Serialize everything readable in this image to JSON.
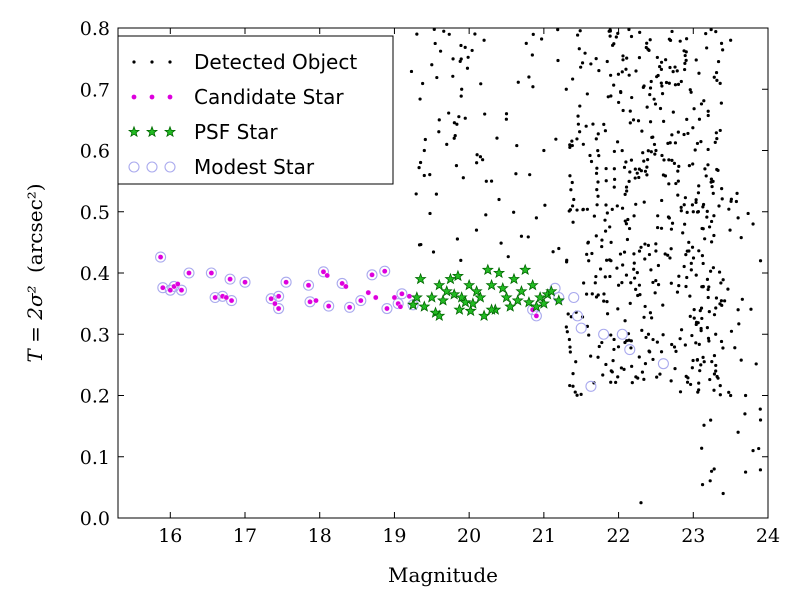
{
  "chart_data": {
    "type": "scatter",
    "xlabel": "Magnitude",
    "ylabel_math": "T = 2σ²",
    "ylabel_unit": "(arcsec²)",
    "xlim": [
      15.3,
      24.0
    ],
    "ylim": [
      0.0,
      0.8
    ],
    "xticks": [
      16,
      17,
      18,
      19,
      20,
      21,
      22,
      23,
      24
    ],
    "yticks": [
      0.0,
      0.1,
      0.2,
      0.3,
      0.4,
      0.5,
      0.6,
      0.7,
      0.8
    ],
    "legend_position": "top-left",
    "series": [
      {
        "name": "Detected Object",
        "color": "#000000",
        "marker": "dot",
        "generated_from": {
          "clusters": [
            {
              "x_range": [
                21.3,
                23.4
              ],
              "y_range": [
                0.2,
                0.8
              ],
              "count": 470,
              "seed": 11
            },
            {
              "x_range": [
                23.0,
                23.9
              ],
              "y_range": [
                0.04,
                0.55
              ],
              "count": 55,
              "seed": 23
            },
            {
              "x_range": [
                19.2,
                21.3
              ],
              "y_range": [
                0.42,
                0.8
              ],
              "count": 70,
              "seed": 37
            }
          ]
        },
        "points": [
          [
            22.3,
            0.025
          ],
          [
            23.4,
            0.04
          ],
          [
            23.7,
            0.075
          ],
          [
            23.8,
            0.11
          ],
          [
            23.6,
            0.14
          ],
          [
            23.9,
            0.16
          ],
          [
            23.5,
            0.2
          ],
          [
            22.6,
            0.56
          ],
          [
            22.8,
            0.63
          ],
          [
            19.6,
            0.65
          ],
          [
            19.9,
            0.7
          ],
          [
            19.5,
            0.74
          ],
          [
            20.2,
            0.78
          ],
          [
            19.3,
            0.79
          ],
          [
            23.5,
            0.78
          ],
          [
            23.1,
            0.25
          ],
          [
            23.3,
            0.3
          ],
          [
            22.9,
            0.43
          ],
          [
            23.0,
            0.5
          ],
          [
            22.8,
            0.55
          ],
          [
            22.5,
            0.6
          ],
          [
            22.2,
            0.65
          ],
          [
            21.7,
            0.75
          ],
          [
            21.9,
            0.45
          ],
          [
            22.0,
            0.38
          ],
          [
            21.6,
            0.42
          ],
          [
            21.4,
            0.52
          ],
          [
            21.3,
            0.7
          ],
          [
            21.2,
            0.44
          ],
          [
            20.9,
            0.49
          ],
          [
            20.7,
            0.46
          ],
          [
            20.4,
            0.52
          ],
          [
            20.3,
            0.55
          ],
          [
            20.1,
            0.58
          ],
          [
            19.8,
            0.62
          ],
          [
            19.7,
            0.61
          ],
          [
            19.4,
            0.6
          ],
          [
            20.5,
            0.66
          ],
          [
            20.8,
            0.72
          ],
          [
            21.0,
            0.6
          ],
          [
            22.4,
            0.3
          ],
          [
            23.2,
            0.36
          ],
          [
            23.6,
            0.34
          ],
          [
            23.3,
            0.24
          ],
          [
            23.7,
            0.2
          ],
          [
            23.8,
            0.48
          ],
          [
            23.6,
            0.49
          ],
          [
            23.9,
            0.42
          ]
        ]
      },
      {
        "name": "Candidate Star",
        "color": "#dd00dd",
        "marker": "small-dot",
        "points": [
          [
            15.87,
            0.426
          ],
          [
            15.9,
            0.376
          ],
          [
            16.0,
            0.372
          ],
          [
            16.05,
            0.378
          ],
          [
            16.1,
            0.382
          ],
          [
            16.15,
            0.372
          ],
          [
            16.25,
            0.4
          ],
          [
            16.55,
            0.4
          ],
          [
            16.6,
            0.36
          ],
          [
            16.7,
            0.362
          ],
          [
            16.75,
            0.36
          ],
          [
            16.8,
            0.39
          ],
          [
            16.82,
            0.355
          ],
          [
            17.0,
            0.385
          ],
          [
            17.35,
            0.358
          ],
          [
            17.4,
            0.35
          ],
          [
            17.45,
            0.342
          ],
          [
            17.45,
            0.362
          ],
          [
            17.55,
            0.385
          ],
          [
            17.85,
            0.38
          ],
          [
            17.87,
            0.353
          ],
          [
            17.95,
            0.355
          ],
          [
            18.05,
            0.402
          ],
          [
            18.1,
            0.396
          ],
          [
            18.12,
            0.346
          ],
          [
            18.3,
            0.383
          ],
          [
            18.35,
            0.378
          ],
          [
            18.4,
            0.344
          ],
          [
            18.55,
            0.355
          ],
          [
            18.65,
            0.368
          ],
          [
            18.7,
            0.397
          ],
          [
            18.75,
            0.36
          ],
          [
            18.87,
            0.403
          ],
          [
            18.9,
            0.342
          ],
          [
            19.0,
            0.36
          ],
          [
            19.05,
            0.35
          ],
          [
            19.08,
            0.345
          ],
          [
            19.1,
            0.366
          ],
          [
            19.2,
            0.362
          ],
          [
            19.25,
            0.348
          ],
          [
            19.3,
            0.36
          ],
          [
            20.85,
            0.34
          ],
          [
            20.9,
            0.33
          ]
        ]
      },
      {
        "name": "PSF Star",
        "color": "#22bb22",
        "marker": "star",
        "points": [
          [
            19.25,
            0.348
          ],
          [
            19.3,
            0.36
          ],
          [
            19.35,
            0.39
          ],
          [
            19.4,
            0.345
          ],
          [
            19.5,
            0.36
          ],
          [
            19.55,
            0.335
          ],
          [
            19.6,
            0.38
          ],
          [
            19.65,
            0.355
          ],
          [
            19.7,
            0.37
          ],
          [
            19.75,
            0.39
          ],
          [
            19.8,
            0.365
          ],
          [
            19.85,
            0.395
          ],
          [
            19.87,
            0.34
          ],
          [
            19.9,
            0.36
          ],
          [
            19.95,
            0.352
          ],
          [
            20.0,
            0.38
          ],
          [
            20.02,
            0.338
          ],
          [
            20.05,
            0.35
          ],
          [
            20.1,
            0.37
          ],
          [
            20.15,
            0.36
          ],
          [
            20.2,
            0.33
          ],
          [
            20.25,
            0.405
          ],
          [
            20.3,
            0.38
          ],
          [
            20.35,
            0.34
          ],
          [
            20.4,
            0.4
          ],
          [
            20.45,
            0.375
          ],
          [
            20.5,
            0.36
          ],
          [
            20.55,
            0.345
          ],
          [
            20.6,
            0.39
          ],
          [
            20.65,
            0.355
          ],
          [
            20.7,
            0.37
          ],
          [
            20.75,
            0.405
          ],
          [
            20.8,
            0.352
          ],
          [
            20.85,
            0.38
          ],
          [
            20.9,
            0.345
          ],
          [
            20.95,
            0.36
          ],
          [
            21.0,
            0.35
          ],
          [
            21.05,
            0.365
          ],
          [
            21.1,
            0.37
          ],
          [
            21.2,
            0.355
          ],
          [
            19.6,
            0.33
          ],
          [
            20.3,
            0.34
          ]
        ]
      },
      {
        "name": "Modest Star",
        "color": "#aaaaee",
        "marker": "ring",
        "points": [
          [
            15.87,
            0.426
          ],
          [
            15.9,
            0.376
          ],
          [
            16.0,
            0.372
          ],
          [
            16.05,
            0.378
          ],
          [
            16.15,
            0.372
          ],
          [
            16.25,
            0.4
          ],
          [
            16.55,
            0.4
          ],
          [
            16.6,
            0.36
          ],
          [
            16.7,
            0.362
          ],
          [
            16.8,
            0.39
          ],
          [
            16.82,
            0.355
          ],
          [
            17.0,
            0.385
          ],
          [
            17.35,
            0.358
          ],
          [
            17.45,
            0.342
          ],
          [
            17.45,
            0.362
          ],
          [
            17.55,
            0.385
          ],
          [
            17.85,
            0.38
          ],
          [
            17.87,
            0.353
          ],
          [
            18.05,
            0.402
          ],
          [
            18.12,
            0.346
          ],
          [
            18.3,
            0.383
          ],
          [
            18.4,
            0.344
          ],
          [
            18.55,
            0.355
          ],
          [
            18.7,
            0.397
          ],
          [
            18.87,
            0.403
          ],
          [
            18.9,
            0.342
          ],
          [
            19.05,
            0.35
          ],
          [
            19.1,
            0.366
          ],
          [
            19.25,
            0.348
          ],
          [
            20.85,
            0.34
          ],
          [
            20.9,
            0.33
          ],
          [
            21.15,
            0.375
          ],
          [
            21.2,
            0.36
          ],
          [
            21.4,
            0.36
          ],
          [
            21.45,
            0.33
          ],
          [
            21.5,
            0.31
          ],
          [
            21.8,
            0.3
          ],
          [
            22.05,
            0.3
          ],
          [
            22.15,
            0.275
          ],
          [
            22.6,
            0.252
          ],
          [
            21.63,
            0.215
          ]
        ]
      }
    ]
  }
}
